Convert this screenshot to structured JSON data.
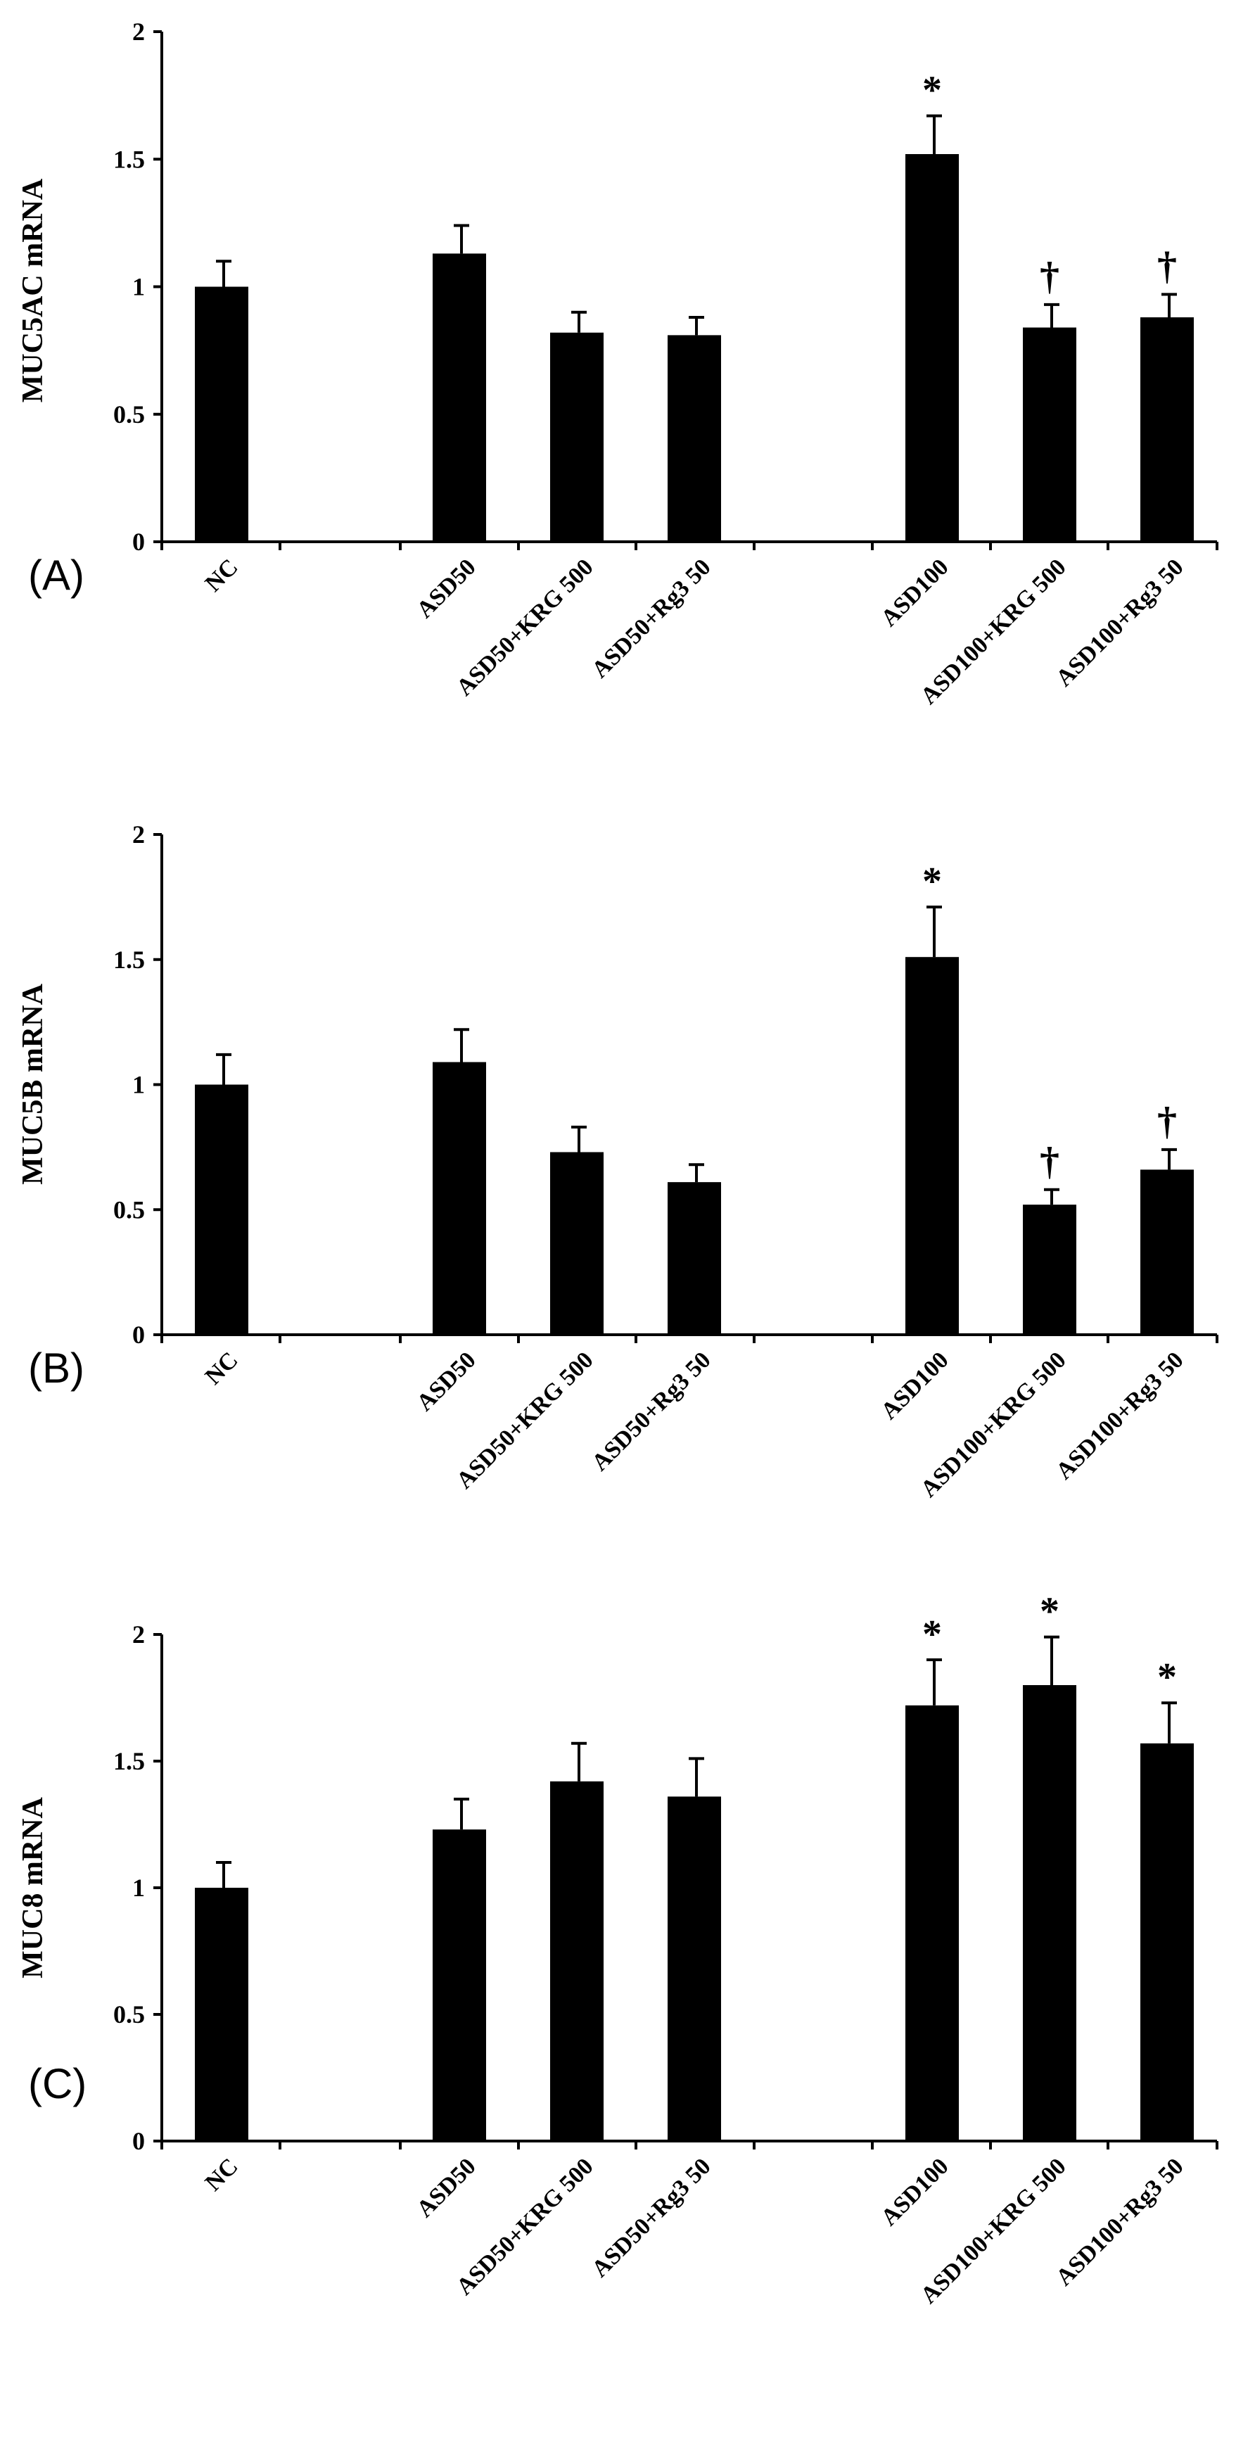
{
  "figure": {
    "categories": [
      "NC",
      "ASD50",
      "ASD50+KRG 500",
      "ASD50+Rg3 50",
      "ASD100",
      "ASD100+KRG 500",
      "ASD100+Rg3 50"
    ],
    "colors": {
      "bar": "#000000",
      "axis": "#000000",
      "background": "#ffffff"
    }
  },
  "chart_data": [
    {
      "type": "bar",
      "panel": "(A)",
      "title": "",
      "ylabel": "MUC5AC  mRNA",
      "xlabel": "",
      "ylim": [
        0,
        2
      ],
      "yticks": [
        0,
        0.5,
        1,
        1.5,
        2
      ],
      "ytick_labels": [
        "0",
        "0.5",
        "1",
        "1.5",
        "2"
      ],
      "categories": [
        "NC",
        "ASD50",
        "ASD50+KRG 500",
        "ASD50+Rg3 50",
        "ASD100",
        "ASD100+KRG 500",
        "ASD100+Rg3 50"
      ],
      "values": [
        1.0,
        1.13,
        0.82,
        0.81,
        1.52,
        0.84,
        0.88
      ],
      "errors": [
        0.1,
        0.11,
        0.08,
        0.07,
        0.15,
        0.09,
        0.09
      ],
      "annotations": [
        "",
        "",
        "",
        "",
        "*",
        "†",
        "†"
      ]
    },
    {
      "type": "bar",
      "panel": "(B)",
      "title": "",
      "ylabel": "MUC5B  mRNA",
      "xlabel": "",
      "ylim": [
        0,
        2
      ],
      "yticks": [
        0,
        0.5,
        1,
        1.5,
        2
      ],
      "ytick_labels": [
        "0",
        "0.5",
        "1",
        "1.5",
        "2"
      ],
      "categories": [
        "NC",
        "ASD50",
        "ASD50+KRG 500",
        "ASD50+Rg3 50",
        "ASD100",
        "ASD100+KRG 500",
        "ASD100+Rg3 50"
      ],
      "values": [
        1.0,
        1.09,
        0.73,
        0.61,
        1.51,
        0.52,
        0.66
      ],
      "errors": [
        0.12,
        0.13,
        0.1,
        0.07,
        0.2,
        0.06,
        0.08
      ],
      "annotations": [
        "",
        "",
        "",
        "",
        "*",
        "†",
        "†"
      ]
    },
    {
      "type": "bar",
      "panel": "(C)",
      "title": "",
      "ylabel": "MUC8  mRNA",
      "xlabel": "",
      "ylim": [
        0,
        2
      ],
      "yticks": [
        0,
        0.5,
        1,
        1.5,
        2
      ],
      "ytick_labels": [
        "0",
        "0.5",
        "1",
        "1.5",
        "2"
      ],
      "categories": [
        "NC",
        "ASD50",
        "ASD50+KRG 500",
        "ASD50+Rg3 50",
        "ASD100",
        "ASD100+KRG 500",
        "ASD100+Rg3 50"
      ],
      "values": [
        1.0,
        1.23,
        1.42,
        1.36,
        1.72,
        1.8,
        1.57
      ],
      "errors": [
        0.1,
        0.12,
        0.15,
        0.15,
        0.18,
        0.19,
        0.16
      ],
      "annotations": [
        "",
        "",
        "",
        "",
        "*",
        "*",
        "*"
      ]
    }
  ]
}
